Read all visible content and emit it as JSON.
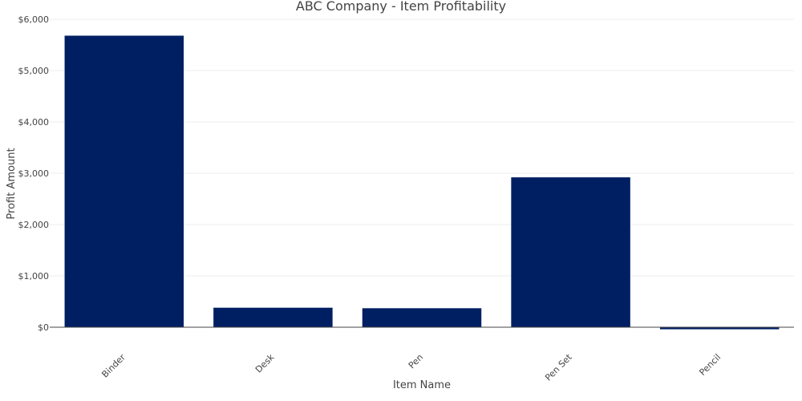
{
  "chart_data": {
    "type": "bar",
    "title": "ABC Company - Item Profitability",
    "xlabel": "Item Name",
    "ylabel": "Profit Amount",
    "categories": [
      "Binder",
      "Desk",
      "Pen",
      "Pen Set",
      "Pencil"
    ],
    "values": [
      5680,
      380,
      370,
      2920,
      -40
    ],
    "ylim": [
      -50,
      6000
    ],
    "yticks": [
      0,
      1000,
      2000,
      3000,
      4000,
      5000,
      6000
    ],
    "ytick_labels": [
      "$0",
      "$1,000",
      "$2,000",
      "$3,000",
      "$4,000",
      "$5,000",
      "$6,000"
    ],
    "grid": true,
    "legend": "none",
    "bar_color": "#001f63",
    "grid_color": "#eeeeee",
    "text_color": "#444444"
  }
}
